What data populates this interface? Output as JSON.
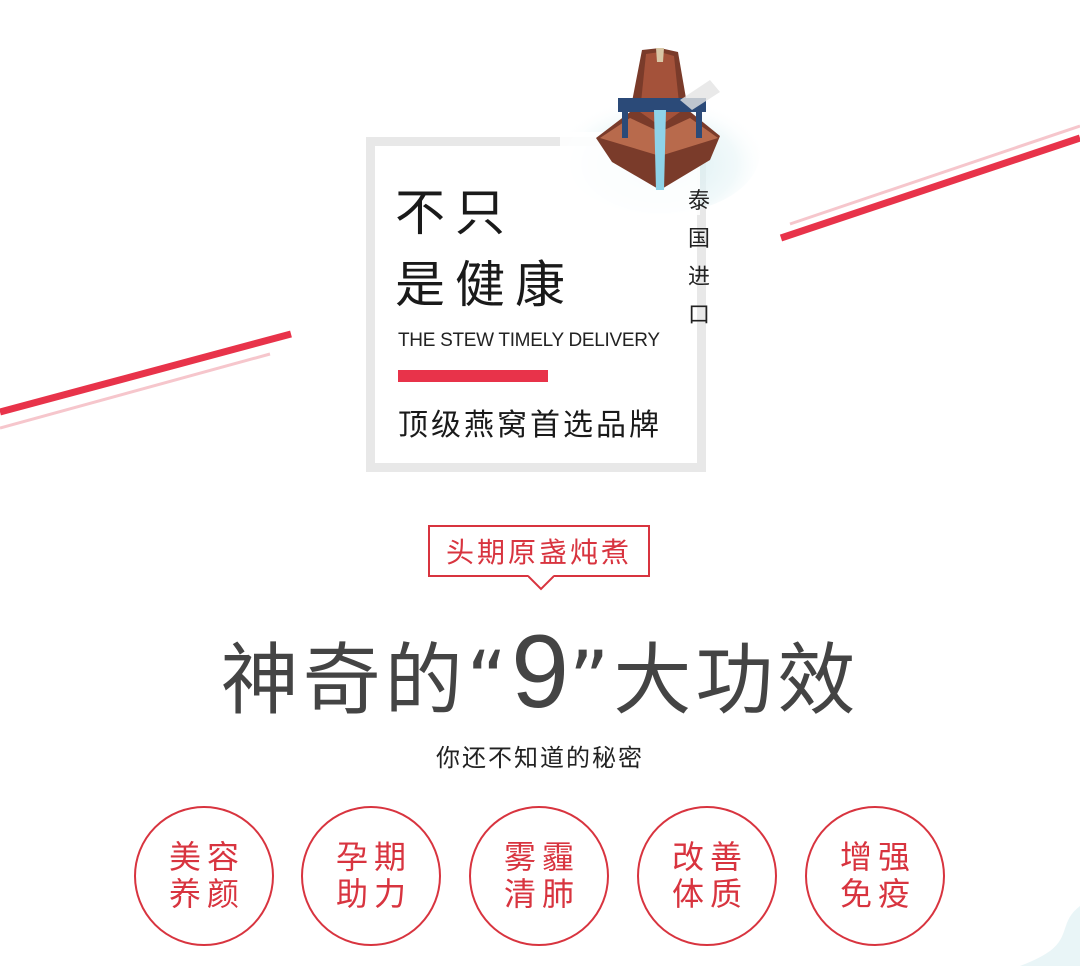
{
  "hero": {
    "headline_line1": "不只",
    "headline_line2": "是健康",
    "vertical_tag": "泰国进口",
    "english_subtitle": "THE STEW TIMELY DELIVERY",
    "brand_tagline": "顶级燕窝首选品牌"
  },
  "callout": {
    "label": "头期原盏炖煮"
  },
  "main_title": {
    "prefix": "神奇的“",
    "number": "9",
    "suffix": "”大功效"
  },
  "subtitle": "你还不知道的秘密",
  "benefits": [
    {
      "line1": "美容",
      "line2": "养颜"
    },
    {
      "line1": "孕期",
      "line2": "助力"
    },
    {
      "line1": "雾霾",
      "line2": "清肺"
    },
    {
      "line1": "改善",
      "line2": "体质"
    },
    {
      "line1": "增强",
      "line2": "免疫"
    }
  ],
  "colors": {
    "accent_red": "#d8343f",
    "stripe_red": "#e8334a",
    "stripe_pink": "#f6c6cc",
    "frame_gray": "#e8e8e8",
    "title_gray": "#444444"
  },
  "icons": [
    "longtail-boat-illustration",
    "diagonal-stripe-decoration",
    "speech-tail-icon"
  ]
}
